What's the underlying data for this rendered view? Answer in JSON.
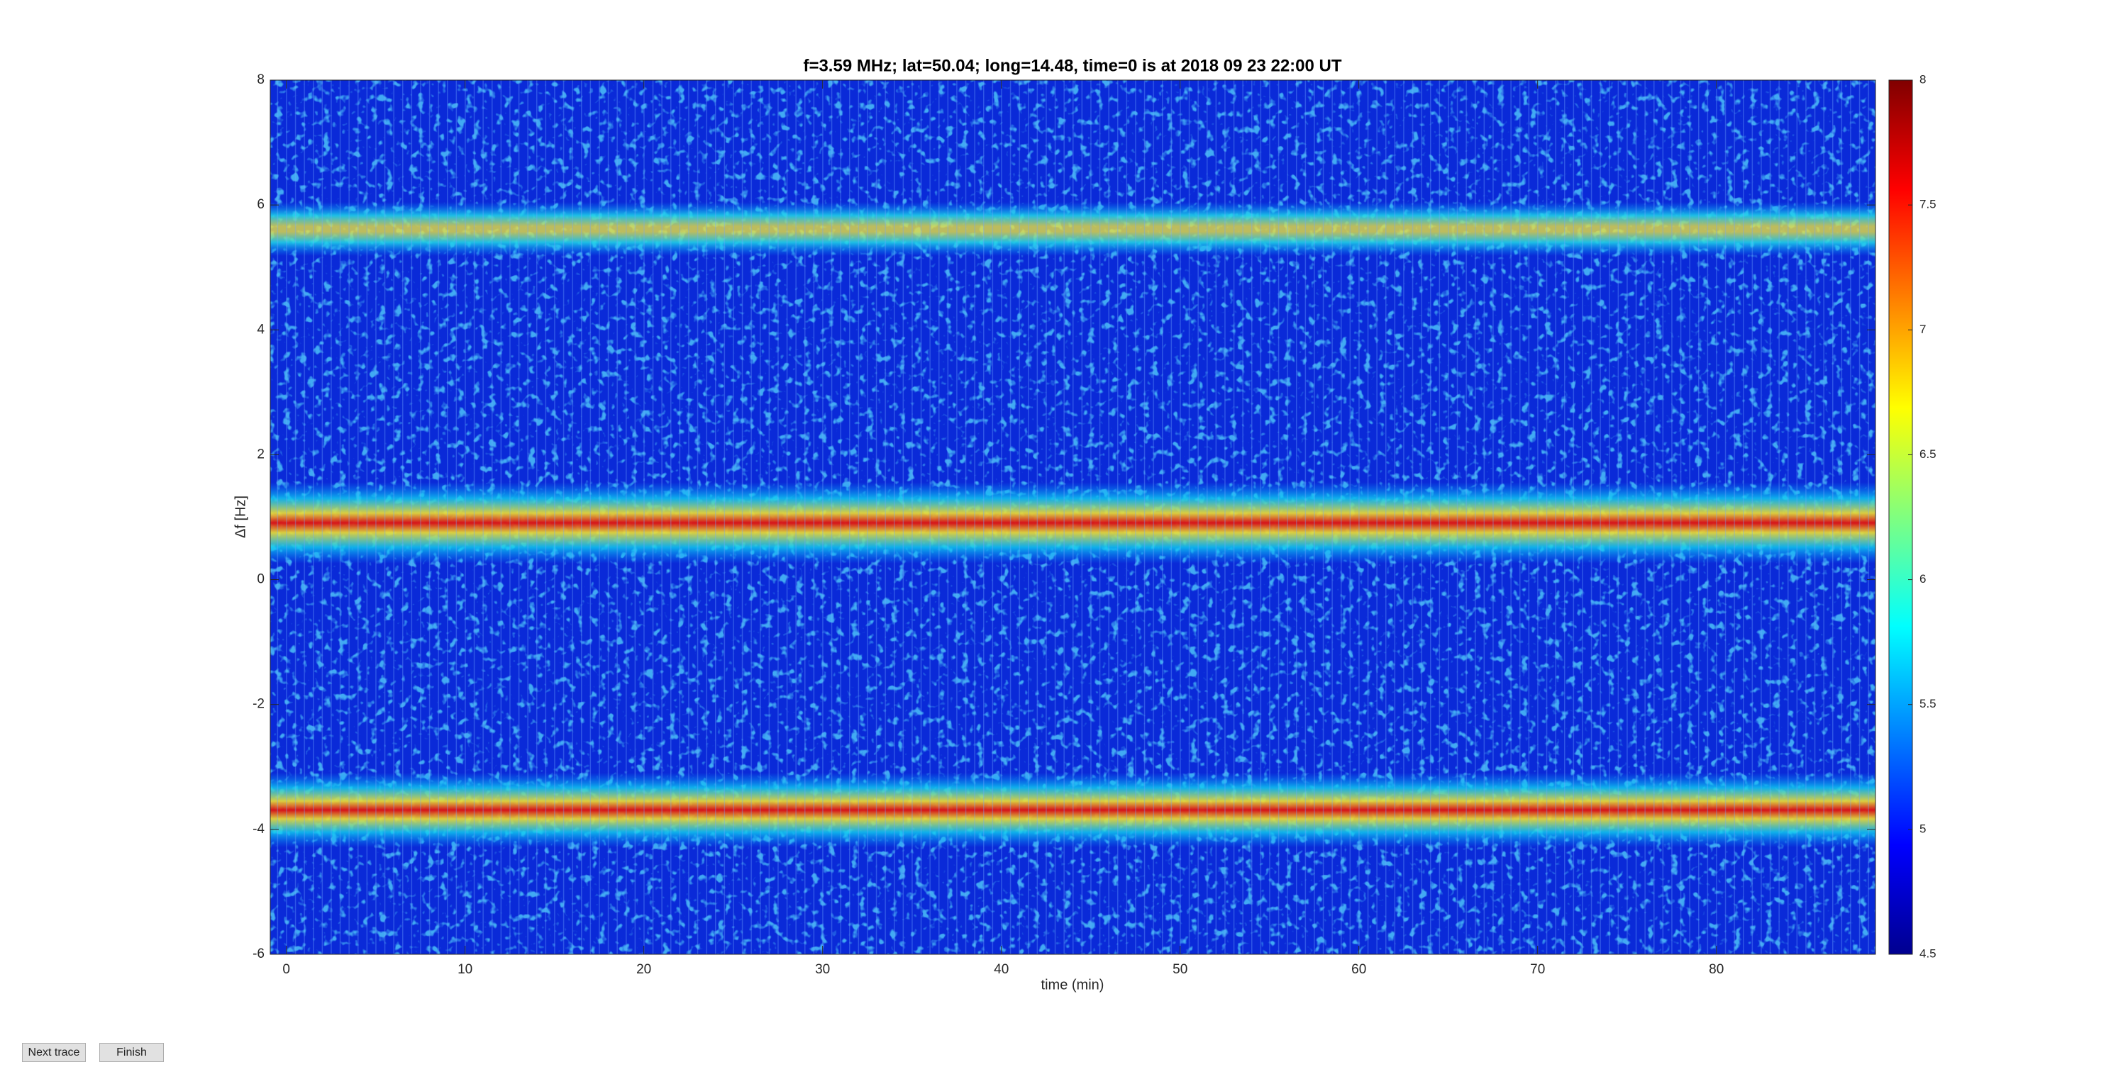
{
  "chart_data": {
    "type": "spectrogram",
    "title": "f=3.59 MHz;  lat=50.04; long=14.48, time=0 is at 2018 09 23 22:00 UT",
    "xlabel": "time (min)",
    "ylabel": "Δf [Hz]",
    "xlim": [
      -0.9,
      88.9
    ],
    "xticks": [
      0,
      10,
      20,
      30,
      40,
      50,
      60,
      70,
      80
    ],
    "ylim": [
      -6,
      8
    ],
    "yticks": [
      -6,
      -4,
      -2,
      0,
      2,
      4,
      6,
      8
    ],
    "colormap": "jet",
    "clim": [
      4.5,
      8
    ],
    "cticks": [
      4.5,
      5,
      5.5,
      6,
      6.5,
      7,
      7.5,
      8
    ]
  },
  "buttons": [
    "Next trace",
    "Finish"
  ]
}
